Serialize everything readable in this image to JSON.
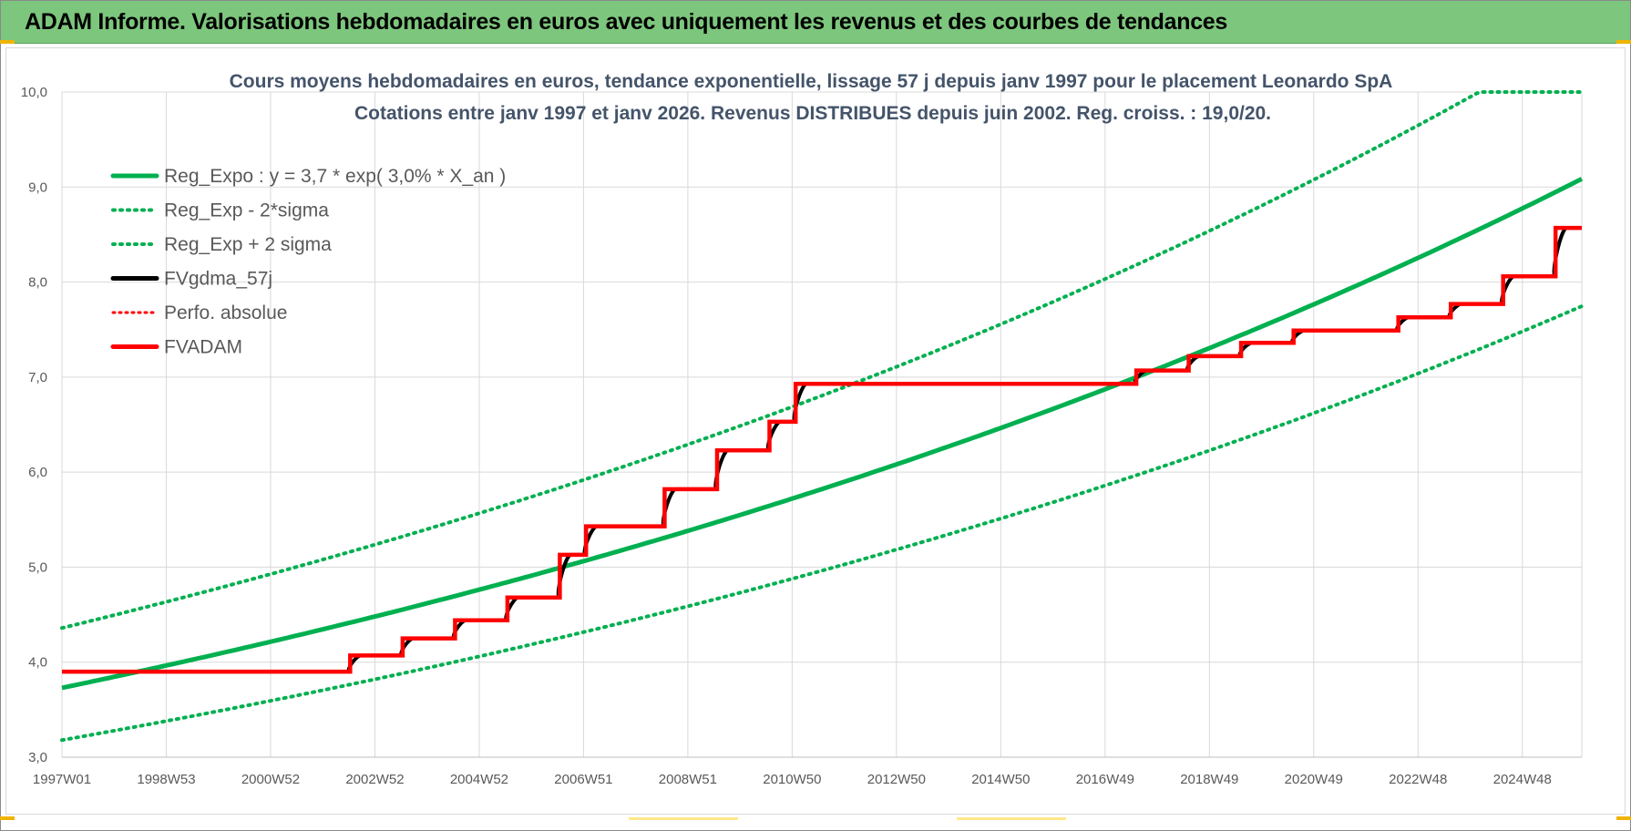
{
  "header": {
    "title": "ADAM Informe. Valorisations hebdomadaires en euros avec uniquement les revenus et des courbes de tendances"
  },
  "colors": {
    "banner": "#7dc67d",
    "green": "#00b050",
    "red": "#ff0000",
    "black": "#000000",
    "grid": "#d9d9d9"
  },
  "chart_data": {
    "type": "line",
    "title_lines": [
      "Cours moyens hebdomadaires en euros, tendance exponentielle, lissage 57 j depuis janv 1997 pour le placement Leonardo SpA",
      "Cotations entre janv 1997 et janv 2026. Revenus DISTRIBUES depuis juin 2002. Reg. croiss. : 19,0/20."
    ],
    "ylim": [
      3.0,
      10.0
    ],
    "y_ticks": [
      "3,0",
      "4,0",
      "5,0",
      "6,0",
      "7,0",
      "8,0",
      "9,0",
      "10,0"
    ],
    "x_range_years": [
      1997.0,
      2026.0
    ],
    "x_ticks": [
      "1997W01",
      "1998W53",
      "2000W52",
      "2002W52",
      "2004W52",
      "2006W51",
      "2008W51",
      "2010W50",
      "2012W50",
      "2014W50",
      "2016W49",
      "2018W49",
      "2020W49",
      "2022W48",
      "2024W48"
    ],
    "grid": true,
    "legend_position": "top-left",
    "series": [
      {
        "name": "Reg_Expo : y = 3,7 * exp( 3,0% *  X_an )",
        "color": "#00b050",
        "style": "solid",
        "model": {
          "a": 3.73,
          "rate": 0.0307
        }
      },
      {
        "name": "Reg_Exp - 2*sigma",
        "color": "#00b050",
        "style": "dotted",
        "model": {
          "a": 3.18,
          "rate": 0.0307
        }
      },
      {
        "name": "Reg_Exp + 2 sigma",
        "color": "#00b050",
        "style": "dotted",
        "model": {
          "a": 4.36,
          "rate": 0.0307
        },
        "cap": 10.0
      },
      {
        "name": "FVgdma_57j",
        "color": "#000000",
        "style": "solid"
      },
      {
        "name": "Perfo. absolue",
        "color": "#ff0000",
        "style": "dotted"
      },
      {
        "name": "FVADAM",
        "color": "#ff0000",
        "style": "solid",
        "points": [
          [
            1997.0,
            3.9
          ],
          [
            2002.5,
            3.9
          ],
          [
            2002.5,
            4.07
          ],
          [
            2003.5,
            4.07
          ],
          [
            2003.5,
            4.25
          ],
          [
            2004.5,
            4.25
          ],
          [
            2004.5,
            4.44
          ],
          [
            2005.5,
            4.44
          ],
          [
            2005.5,
            4.68
          ],
          [
            2006.5,
            4.68
          ],
          [
            2006.5,
            5.13
          ],
          [
            2007.0,
            5.13
          ],
          [
            2007.0,
            5.43
          ],
          [
            2008.5,
            5.43
          ],
          [
            2008.5,
            5.82
          ],
          [
            2009.5,
            5.82
          ],
          [
            2009.5,
            6.23
          ],
          [
            2010.5,
            6.23
          ],
          [
            2010.5,
            6.53
          ],
          [
            2011.0,
            6.53
          ],
          [
            2011.0,
            6.93
          ],
          [
            2017.5,
            6.93
          ],
          [
            2017.5,
            7.07
          ],
          [
            2018.5,
            7.07
          ],
          [
            2018.5,
            7.22
          ],
          [
            2019.5,
            7.22
          ],
          [
            2019.5,
            7.36
          ],
          [
            2020.5,
            7.36
          ],
          [
            2020.5,
            7.49
          ],
          [
            2022.5,
            7.49
          ],
          [
            2022.5,
            7.63
          ],
          [
            2023.5,
            7.63
          ],
          [
            2023.5,
            7.77
          ],
          [
            2024.5,
            7.77
          ],
          [
            2024.5,
            8.06
          ],
          [
            2025.5,
            8.06
          ],
          [
            2025.5,
            8.57
          ],
          [
            2026.0,
            8.57
          ]
        ]
      }
    ]
  }
}
